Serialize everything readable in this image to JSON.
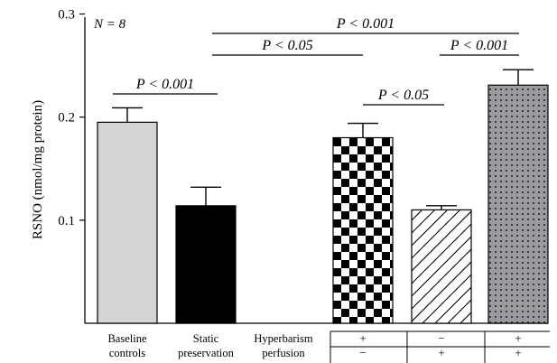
{
  "chart_data": {
    "type": "bar",
    "ylabel": "RSNO (nmol/mg protein)",
    "ylim": [
      0,
      0.3
    ],
    "yticks": [
      {
        "value": 0.1,
        "label": "0.1"
      },
      {
        "value": 0.2,
        "label": "0.2"
      },
      {
        "value": 0.3,
        "label": "0.3"
      }
    ],
    "annotation_n": "N = 8",
    "bars": [
      {
        "name": "Baseline controls",
        "label_lines": [
          "Baseline",
          "controls"
        ],
        "value": 0.195,
        "error": 0.014,
        "fill": "light-gray"
      },
      {
        "name": "Static preservation",
        "label_lines": [
          "Static",
          "preservation"
        ],
        "value": 0.114,
        "error": 0.018,
        "fill": "black"
      },
      {
        "name": "",
        "value": 0.18,
        "error": 0.014,
        "fill": "checkerboard"
      },
      {
        "name": "",
        "value": 0.11,
        "error": 0.004,
        "fill": "diagonal-hatch"
      },
      {
        "name": "",
        "value": 0.231,
        "error": 0.015,
        "fill": "dotted-gray"
      }
    ],
    "condition_rows": [
      {
        "label": "Hyperbarism",
        "values": [
          "+",
          "−",
          "+"
        ]
      },
      {
        "label": "perfusion",
        "values": [
          "−",
          "+",
          "+"
        ]
      }
    ],
    "significance": [
      {
        "from": 0,
        "to": 1,
        "text": "P < 0.001"
      },
      {
        "from": 1,
        "to": 2,
        "text": "P < 0.05"
      },
      {
        "from": 1,
        "to": 4,
        "text": "P < 0.001"
      },
      {
        "from": 2,
        "to": 3,
        "text": "P < 0.05"
      },
      {
        "from": 3,
        "to": 4,
        "text": "P < 0.001"
      }
    ],
    "colors": {
      "axis": "#000000",
      "light_gray": "#d3d4d6",
      "black": "#000000",
      "dotted_gray": "#9a9ba0",
      "dots": "#1a1a1a"
    }
  }
}
